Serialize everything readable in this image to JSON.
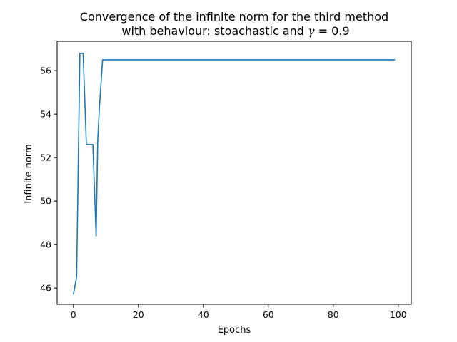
{
  "chart_data": {
    "type": "line",
    "title_line1": "Convergence of the infinite norm for the third method",
    "title_line2_prefix": "with behaviour: stoachastic and ",
    "title_line2_gamma": "γ",
    "title_line2_suffix": " = 0.9",
    "xlabel": "Epochs",
    "ylabel": "Infinite norm",
    "xlim": [
      -5,
      104
    ],
    "ylim": [
      45.25,
      57.35
    ],
    "xticks": [
      0,
      20,
      40,
      60,
      80,
      100
    ],
    "yticks": [
      46,
      48,
      50,
      52,
      54,
      56
    ],
    "grid": false,
    "line_color": "#1f77b4",
    "series": [
      {
        "x": [
          0,
          1,
          2,
          3,
          4,
          5,
          6,
          7,
          7.5,
          8,
          9,
          10,
          20,
          30,
          40,
          50,
          60,
          70,
          80,
          90,
          99
        ],
        "y": [
          45.7,
          46.5,
          56.8,
          56.8,
          52.6,
          52.6,
          52.6,
          48.4,
          52.8,
          54.3,
          56.5,
          56.5,
          56.5,
          56.5,
          56.5,
          56.5,
          56.5,
          56.5,
          56.5,
          56.5,
          56.5
        ]
      }
    ]
  }
}
